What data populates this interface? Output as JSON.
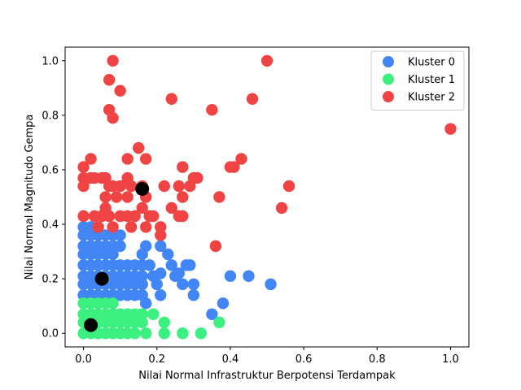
{
  "chart_data": {
    "type": "scatter",
    "title": "",
    "xlabel": "Nilai Normal Infrastruktur Berpotensi Terdampak",
    "ylabel": "Nilai Normal Magnitudo Gempa",
    "xlim": [
      -0.05,
      1.05
    ],
    "ylim": [
      -0.05,
      1.05
    ],
    "x_ticks": [
      0.0,
      0.2,
      0.4,
      0.6,
      0.8,
      1.0
    ],
    "y_ticks": [
      0.0,
      0.2,
      0.4,
      0.6,
      0.8,
      1.0
    ],
    "x_tick_labels": [
      "0.0",
      "0.2",
      "0.4",
      "0.6",
      "0.8",
      "1.0"
    ],
    "y_tick_labels": [
      "0.0",
      "0.2",
      "0.4",
      "0.6",
      "0.8",
      "1.0"
    ],
    "grid": false,
    "legend_position": "top-right",
    "series": [
      {
        "name": "Kluster 0",
        "color": "#4285f4",
        "points": [
          [
            0.0,
            0.39
          ],
          [
            0.0,
            0.36
          ],
          [
            0.0,
            0.32
          ],
          [
            0.0,
            0.29
          ],
          [
            0.0,
            0.25
          ],
          [
            0.0,
            0.21
          ],
          [
            0.0,
            0.18
          ],
          [
            0.0,
            0.14
          ],
          [
            0.02,
            0.39
          ],
          [
            0.02,
            0.36
          ],
          [
            0.02,
            0.32
          ],
          [
            0.02,
            0.29
          ],
          [
            0.02,
            0.25
          ],
          [
            0.02,
            0.21
          ],
          [
            0.02,
            0.18
          ],
          [
            0.02,
            0.14
          ],
          [
            0.04,
            0.39
          ],
          [
            0.04,
            0.36
          ],
          [
            0.04,
            0.32
          ],
          [
            0.04,
            0.29
          ],
          [
            0.04,
            0.25
          ],
          [
            0.04,
            0.21
          ],
          [
            0.04,
            0.18
          ],
          [
            0.04,
            0.14
          ],
          [
            0.06,
            0.36
          ],
          [
            0.06,
            0.32
          ],
          [
            0.06,
            0.29
          ],
          [
            0.06,
            0.25
          ],
          [
            0.06,
            0.21
          ],
          [
            0.06,
            0.18
          ],
          [
            0.06,
            0.14
          ],
          [
            0.08,
            0.36
          ],
          [
            0.08,
            0.32
          ],
          [
            0.08,
            0.29
          ],
          [
            0.08,
            0.25
          ],
          [
            0.08,
            0.21
          ],
          [
            0.08,
            0.18
          ],
          [
            0.08,
            0.14
          ],
          [
            0.1,
            0.36
          ],
          [
            0.1,
            0.32
          ],
          [
            0.1,
            0.25
          ],
          [
            0.1,
            0.21
          ],
          [
            0.1,
            0.18
          ],
          [
            0.1,
            0.14
          ],
          [
            0.12,
            0.25
          ],
          [
            0.12,
            0.21
          ],
          [
            0.12,
            0.18
          ],
          [
            0.12,
            0.14
          ],
          [
            0.14,
            0.25
          ],
          [
            0.14,
            0.21
          ],
          [
            0.14,
            0.18
          ],
          [
            0.14,
            0.14
          ],
          [
            0.16,
            0.29
          ],
          [
            0.16,
            0.25
          ],
          [
            0.16,
            0.21
          ],
          [
            0.16,
            0.18
          ],
          [
            0.16,
            0.14
          ],
          [
            0.17,
            0.32
          ],
          [
            0.18,
            0.25
          ],
          [
            0.17,
            0.11
          ],
          [
            0.19,
            0.21
          ],
          [
            0.2,
            0.18
          ],
          [
            0.21,
            0.32
          ],
          [
            0.21,
            0.14
          ],
          [
            0.21,
            0.22
          ],
          [
            0.23,
            0.29
          ],
          [
            0.24,
            0.25
          ],
          [
            0.25,
            0.21
          ],
          [
            0.26,
            0.22
          ],
          [
            0.27,
            0.18
          ],
          [
            0.28,
            0.25
          ],
          [
            0.29,
            0.25
          ],
          [
            0.3,
            0.18
          ],
          [
            0.3,
            0.14
          ],
          [
            0.35,
            0.07
          ],
          [
            0.38,
            0.11
          ],
          [
            0.4,
            0.21
          ],
          [
            0.45,
            0.21
          ],
          [
            0.51,
            0.18
          ]
        ]
      },
      {
        "name": "Kluster 1",
        "color": "#3cf07f",
        "points": [
          [
            0.0,
            0.11
          ],
          [
            0.0,
            0.07
          ],
          [
            0.0,
            0.04
          ],
          [
            0.0,
            0.0
          ],
          [
            0.02,
            0.11
          ],
          [
            0.02,
            0.07
          ],
          [
            0.02,
            0.04
          ],
          [
            0.02,
            0.0
          ],
          [
            0.04,
            0.11
          ],
          [
            0.04,
            0.07
          ],
          [
            0.04,
            0.04
          ],
          [
            0.04,
            0.0
          ],
          [
            0.06,
            0.11
          ],
          [
            0.06,
            0.07
          ],
          [
            0.06,
            0.04
          ],
          [
            0.06,
            0.0
          ],
          [
            0.08,
            0.11
          ],
          [
            0.08,
            0.07
          ],
          [
            0.08,
            0.04
          ],
          [
            0.08,
            0.0
          ],
          [
            0.1,
            0.07
          ],
          [
            0.1,
            0.04
          ],
          [
            0.1,
            0.0
          ],
          [
            0.12,
            0.07
          ],
          [
            0.12,
            0.04
          ],
          [
            0.12,
            0.0
          ],
          [
            0.14,
            0.07
          ],
          [
            0.14,
            0.04
          ],
          [
            0.14,
            0.0
          ],
          [
            0.16,
            0.07
          ],
          [
            0.16,
            0.04
          ],
          [
            0.17,
            0.0
          ],
          [
            0.19,
            0.07
          ],
          [
            0.22,
            0.04
          ],
          [
            0.22,
            0.0
          ],
          [
            0.27,
            0.0
          ],
          [
            0.32,
            0.0
          ],
          [
            0.37,
            0.04
          ]
        ]
      },
      {
        "name": "Kluster 2",
        "color": "#f04444",
        "points": [
          [
            0.08,
            1.0
          ],
          [
            0.07,
            0.93
          ],
          [
            0.07,
            0.82
          ],
          [
            0.08,
            0.79
          ],
          [
            0.1,
            0.89
          ],
          [
            0.5,
            1.0
          ],
          [
            0.24,
            0.86
          ],
          [
            0.35,
            0.82
          ],
          [
            0.46,
            0.86
          ],
          [
            0.15,
            0.68
          ],
          [
            0.12,
            0.64
          ],
          [
            0.17,
            0.64
          ],
          [
            0.27,
            0.61
          ],
          [
            0.4,
            0.61
          ],
          [
            0.41,
            0.61
          ],
          [
            0.43,
            0.64
          ],
          [
            1.0,
            0.75
          ],
          [
            0.0,
            0.61
          ],
          [
            0.0,
            0.57
          ],
          [
            0.0,
            0.54
          ],
          [
            0.02,
            0.64
          ],
          [
            0.02,
            0.57
          ],
          [
            0.03,
            0.57
          ],
          [
            0.05,
            0.57
          ],
          [
            0.06,
            0.57
          ],
          [
            0.07,
            0.54
          ],
          [
            0.06,
            0.5
          ],
          [
            0.08,
            0.54
          ],
          [
            0.09,
            0.5
          ],
          [
            0.1,
            0.54
          ],
          [
            0.12,
            0.57
          ],
          [
            0.12,
            0.5
          ],
          [
            0.13,
            0.54
          ],
          [
            0.16,
            0.54
          ],
          [
            0.17,
            0.5
          ],
          [
            0.22,
            0.54
          ],
          [
            0.26,
            0.54
          ],
          [
            0.27,
            0.5
          ],
          [
            0.29,
            0.54
          ],
          [
            0.3,
            0.57
          ],
          [
            0.31,
            0.57
          ],
          [
            0.37,
            0.5
          ],
          [
            0.56,
            0.54
          ],
          [
            0.54,
            0.46
          ],
          [
            0.0,
            0.43
          ],
          [
            0.03,
            0.43
          ],
          [
            0.04,
            0.39
          ],
          [
            0.05,
            0.43
          ],
          [
            0.06,
            0.46
          ],
          [
            0.07,
            0.43
          ],
          [
            0.08,
            0.39
          ],
          [
            0.1,
            0.43
          ],
          [
            0.12,
            0.43
          ],
          [
            0.13,
            0.39
          ],
          [
            0.14,
            0.43
          ],
          [
            0.16,
            0.46
          ],
          [
            0.17,
            0.39
          ],
          [
            0.18,
            0.43
          ],
          [
            0.19,
            0.43
          ],
          [
            0.21,
            0.39
          ],
          [
            0.21,
            0.36
          ],
          [
            0.24,
            0.46
          ],
          [
            0.26,
            0.43
          ],
          [
            0.27,
            0.43
          ],
          [
            0.36,
            0.32
          ]
        ]
      },
      {
        "name": "",
        "color": "#000000",
        "points": [
          [
            0.02,
            0.03
          ],
          [
            0.05,
            0.2
          ],
          [
            0.16,
            0.53
          ]
        ]
      }
    ]
  }
}
